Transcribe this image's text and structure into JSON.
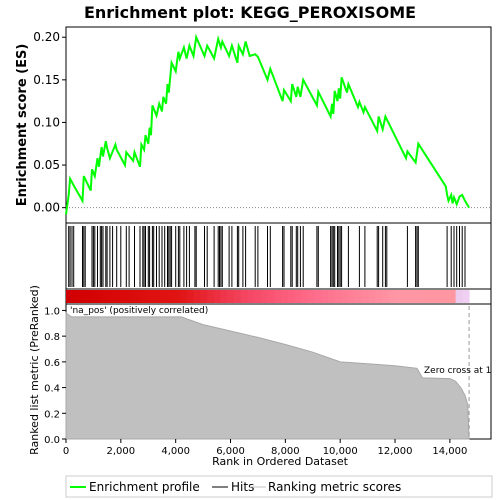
{
  "chart_data": {
    "type": "line",
    "title": "Enrichment plot: KEGG_PEROXISOME",
    "xlabel": "Rank in Ordered Dataset",
    "ylabel_top": "Enrichment score (ES)",
    "ylabel_bottom": "Ranked list metric (PreRanked)",
    "x_ticks": [
      "0",
      "2,000",
      "4,000",
      "6,000",
      "8,000",
      "10,000",
      "12,000",
      "14,000"
    ],
    "y_ticks_top": [
      "0.00",
      "0.05",
      "0.10",
      "0.15",
      "0.20"
    ],
    "y_ticks_bottom": [
      "0.0",
      "0.2",
      "0.4",
      "0.6",
      "0.8",
      "1.0"
    ],
    "x_range": [
      0,
      15500
    ],
    "y_range_top": [
      -0.018,
      0.212
    ],
    "y_range_bottom": [
      0,
      1.05
    ],
    "annotation_pos": "'na_pos' (positively correlated)",
    "annotation_zero": "Zero cross at 1",
    "zero_cross_rank": 14700,
    "n_genes": 14700,
    "legend": [
      {
        "label": "Enrichment profile",
        "color": "#00ff00"
      },
      {
        "label": "Hits",
        "color": "#000000"
      },
      {
        "label": "Ranking metric scores",
        "color": "#c0c0c0"
      }
    ],
    "enrichment_profile": {
      "x": [
        0,
        100,
        150,
        300,
        600,
        650,
        900,
        950,
        1050,
        1150,
        1200,
        1300,
        1350,
        1450,
        1500,
        1600,
        1800,
        1850,
        2150,
        2200,
        2450,
        2500,
        2700,
        2750,
        2850,
        2900,
        3000,
        3050,
        3100,
        3150,
        3300,
        3400,
        3500,
        3550,
        3650,
        3700,
        3750,
        3850,
        4000,
        4100,
        4150,
        4300,
        4400,
        4500,
        4650,
        4750,
        5050,
        5150,
        5400,
        5550,
        5650,
        5700,
        5950,
        6050,
        6250,
        6300,
        6450,
        6550,
        6700,
        6900,
        7000,
        7350,
        7450,
        7900,
        7950,
        8200,
        8250,
        8400,
        8450,
        8550,
        8650,
        9150,
        9200,
        9650,
        9700,
        9750,
        9800,
        9900,
        9950,
        10000,
        10050,
        10250,
        10300,
        10650,
        10700,
        10850,
        10900,
        11350,
        11400,
        11550,
        11650,
        12400,
        12450,
        12750,
        12800,
        12850,
        13850,
        13900,
        13950,
        14050,
        14100,
        14150,
        14250,
        14350,
        14450,
        14550,
        14700
      ],
      "y": [
        -0.008,
        0.015,
        0.034,
        0.025,
        0.008,
        0.037,
        0.02,
        0.045,
        0.037,
        0.058,
        0.048,
        0.071,
        0.06,
        0.078,
        0.07,
        0.058,
        0.074,
        0.068,
        0.05,
        0.065,
        0.055,
        0.065,
        0.048,
        0.074,
        0.068,
        0.085,
        0.075,
        0.094,
        0.085,
        0.12,
        0.108,
        0.122,
        0.113,
        0.13,
        0.122,
        0.145,
        0.135,
        0.17,
        0.16,
        0.183,
        0.175,
        0.188,
        0.175,
        0.19,
        0.178,
        0.2,
        0.178,
        0.19,
        0.175,
        0.198,
        0.188,
        0.195,
        0.178,
        0.19,
        0.17,
        0.19,
        0.18,
        0.195,
        0.178,
        0.18,
        0.177,
        0.15,
        0.163,
        0.125,
        0.138,
        0.125,
        0.145,
        0.13,
        0.142,
        0.13,
        0.15,
        0.12,
        0.136,
        0.107,
        0.122,
        0.11,
        0.137,
        0.125,
        0.14,
        0.128,
        0.153,
        0.135,
        0.145,
        0.118,
        0.124,
        0.112,
        0.118,
        0.09,
        0.107,
        0.092,
        0.107,
        0.058,
        0.066,
        0.053,
        0.064,
        0.075,
        0.025,
        0.015,
        0.008,
        0.015,
        0.005,
        0.012,
        0.004,
        0.013,
        0.015,
        0.008,
        0.0
      ]
    },
    "hits_x": [
      100,
      150,
      220,
      280,
      600,
      650,
      700,
      950,
      1000,
      1050,
      1150,
      1250,
      1300,
      1350,
      1450,
      1500,
      1600,
      1700,
      1850,
      2000,
      2200,
      2300,
      2500,
      2700,
      2800,
      2850,
      2900,
      3000,
      3050,
      3150,
      3200,
      3300,
      3400,
      3500,
      3600,
      3700,
      3750,
      3800,
      3850,
      4000,
      4100,
      4150,
      4300,
      4400,
      4500,
      4700,
      4750,
      5050,
      5150,
      5400,
      5550,
      5600,
      5650,
      5700,
      5950,
      6050,
      6250,
      6300,
      6450,
      6550,
      6900,
      7000,
      7350,
      7450,
      7900,
      7950,
      8200,
      8250,
      8400,
      8450,
      8550,
      8650,
      9150,
      9200,
      9650,
      9700,
      9750,
      9800,
      9900,
      9950,
      10000,
      10050,
      10300,
      10700,
      10900,
      11350,
      11400,
      11550,
      11650,
      11700,
      12450,
      12750,
      12800,
      12850,
      13900,
      14050,
      14150,
      14250,
      14350,
      14450,
      14550
    ],
    "metric_curve": {
      "x": [
        0,
        200,
        4200,
        5000,
        6000,
        7000,
        8000,
        9000,
        10000,
        11000,
        12000,
        12800,
        13000,
        14000,
        14200,
        14400,
        14550,
        14650,
        14700
      ],
      "y": [
        0.98,
        0.95,
        0.95,
        0.89,
        0.84,
        0.79,
        0.735,
        0.675,
        0.6,
        0.585,
        0.57,
        0.55,
        0.475,
        0.47,
        0.45,
        0.4,
        0.34,
        0.27,
        0.0
      ]
    }
  }
}
